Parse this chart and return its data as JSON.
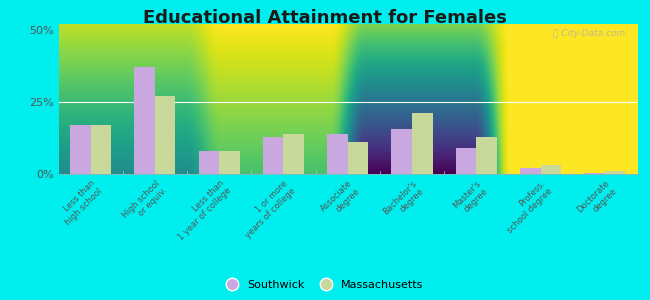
{
  "title": "Educational Attainment for Females",
  "categories": [
    "Less than\nhigh school",
    "High school\nor equiv.",
    "Less than\n1 year of college",
    "1 or more\nyears of college",
    "Associate\ndegree",
    "Bachelor's\ndegree",
    "Master's\ndegree",
    "Profess.\nschool degree",
    "Doctorate\ndegree"
  ],
  "southwick": [
    17.0,
    37.0,
    8.0,
    13.0,
    14.0,
    15.5,
    9.0,
    2.0,
    0.2
  ],
  "massachusetts": [
    17.0,
    27.0,
    8.0,
    14.0,
    11.0,
    21.0,
    13.0,
    3.0,
    1.2
  ],
  "southwick_color": "#c9a8e0",
  "massachusetts_color": "#c8d89a",
  "bg_bottom_color": "#d8e8b0",
  "bg_top_color": "#f8fef0",
  "outer_background": "#00eeee",
  "yticks": [
    0,
    25,
    50
  ],
  "ylim": [
    0,
    52
  ],
  "bar_width": 0.32,
  "legend_southwick": "Southwick",
  "legend_massachusetts": "Massachusetts",
  "title_fontsize": 13,
  "tick_fontsize": 6.0,
  "watermark": "City-Data.com"
}
